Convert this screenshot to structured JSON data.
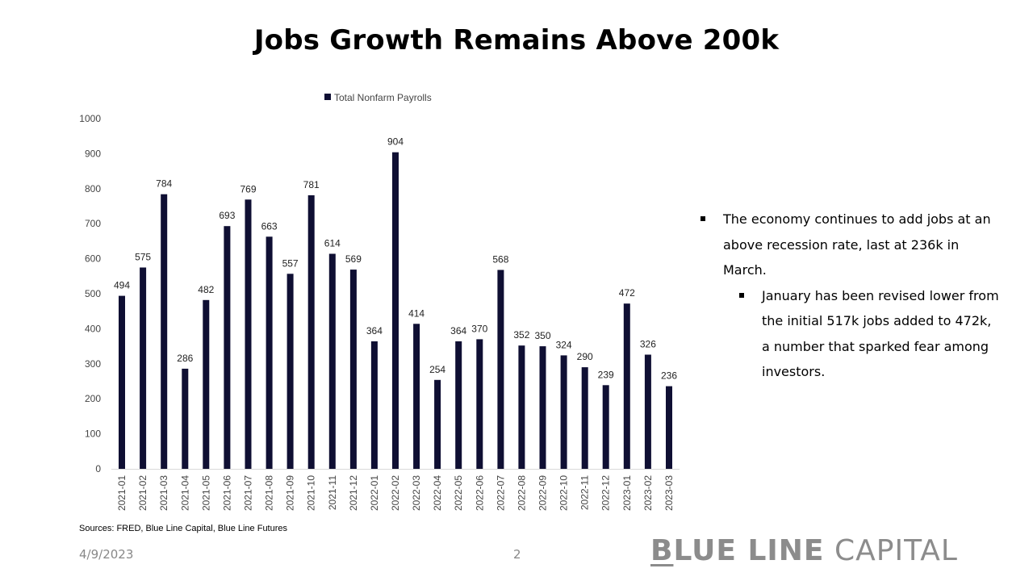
{
  "slide": {
    "title": "Jobs Growth Remains Above 200k",
    "source": "Sources: FRED, Blue Line Capital, Blue Line Futures",
    "date": "4/9/2023",
    "page_number": "2"
  },
  "logo": {
    "first_letter": "B",
    "bold_rest": "LUE LINE",
    "light_part": " CAPITAL"
  },
  "bullets": [
    {
      "level": 1,
      "text": "The economy continues to add jobs at an above recession rate, last at 236k in March."
    },
    {
      "level": 2,
      "text": "January has been revised lower from the initial 517k jobs added to 472k, a number that sparked fear among investors."
    }
  ],
  "colors": {
    "bar": "#0f0f33",
    "axis": "#d9d9d9"
  },
  "chart_data": {
    "type": "bar",
    "categories": [
      "2021-01",
      "2021-02",
      "2021-03",
      "2021-04",
      "2021-05",
      "2021-06",
      "2021-07",
      "2021-08",
      "2021-09",
      "2021-10",
      "2021-11",
      "2021-12",
      "2022-01",
      "2022-02",
      "2022-03",
      "2022-04",
      "2022-05",
      "2022-06",
      "2022-07",
      "2022-08",
      "2022-09",
      "2022-10",
      "2022-11",
      "2022-12",
      "2023-01",
      "2023-02",
      "2023-03"
    ],
    "series": [
      {
        "name": "Total Nonfarm Payrolls",
        "values": [
          494,
          575,
          784,
          286,
          482,
          693,
          769,
          663,
          557,
          781,
          614,
          569,
          364,
          904,
          414,
          254,
          364,
          370,
          568,
          352,
          350,
          324,
          290,
          239,
          472,
          326,
          236
        ]
      }
    ],
    "yticks": [
      0,
      100,
      200,
      300,
      400,
      500,
      600,
      700,
      800,
      900,
      1000
    ],
    "ylim": [
      0,
      1000
    ],
    "grid": false,
    "legend_position": "top",
    "data_labels": true
  }
}
